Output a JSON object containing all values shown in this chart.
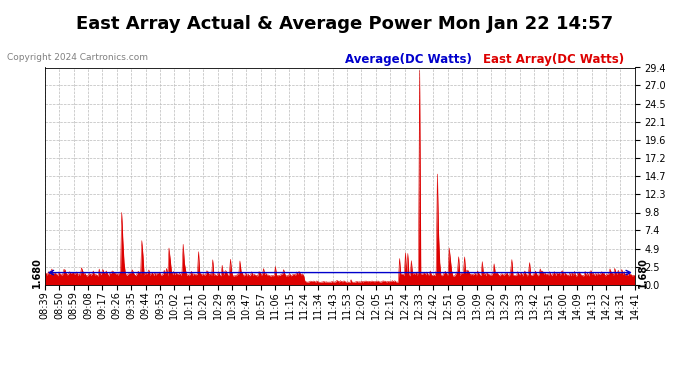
{
  "title": "East Array Actual & Average Power Mon Jan 22 14:57",
  "copyright": "Copyright 2024 Cartronics.com",
  "legend_average": "Average(DC Watts)",
  "legend_east": "East Array(DC Watts)",
  "average_value": 1.68,
  "ymax": 29.4,
  "yticks": [
    0.0,
    2.5,
    4.9,
    7.4,
    9.8,
    12.3,
    14.7,
    17.2,
    19.6,
    22.1,
    24.5,
    27.0,
    29.4
  ],
  "avg_line_label": "1.680",
  "xtick_labels": [
    "08:39",
    "08:50",
    "08:59",
    "09:08",
    "09:17",
    "09:26",
    "09:35",
    "09:44",
    "09:53",
    "10:02",
    "10:11",
    "10:20",
    "10:29",
    "10:38",
    "10:47",
    "10:57",
    "11:06",
    "11:15",
    "11:24",
    "11:34",
    "11:43",
    "11:53",
    "12:02",
    "12:05",
    "12:15",
    "12:24",
    "12:33",
    "12:42",
    "12:51",
    "13:00",
    "13:09",
    "13:20",
    "13:29",
    "13:33",
    "13:42",
    "13:51",
    "14:00",
    "14:09",
    "14:13",
    "14:22",
    "14:31",
    "14:41"
  ],
  "background_color": "#ffffff",
  "grid_color": "#bbbbbb",
  "avg_color": "#0000cc",
  "east_color": "#dd0000",
  "title_fontsize": 13,
  "tick_fontsize": 7,
  "copy_fontsize": 6.5,
  "legend_fontsize": 8.5
}
